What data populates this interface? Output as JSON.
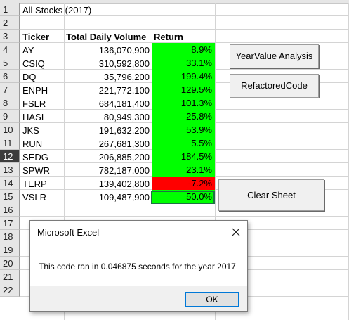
{
  "sheet": {
    "row_numbers": [
      "1",
      "2",
      "3",
      "4",
      "5",
      "6",
      "7",
      "8",
      "9",
      "10",
      "11",
      "12",
      "13",
      "14",
      "15",
      "16",
      "17",
      "18",
      "19",
      "20",
      "21",
      "22"
    ],
    "selected_row": "12",
    "title": "All Stocks (2017)",
    "headers": {
      "ticker": "Ticker",
      "volume": "Total Daily Volume",
      "return": "Return"
    },
    "rows": [
      {
        "ticker": "AY",
        "volume": "136,070,900",
        "return": "8.9%"
      },
      {
        "ticker": "CSIQ",
        "volume": "310,592,800",
        "return": "33.1%"
      },
      {
        "ticker": "DQ",
        "volume": "35,796,200",
        "return": "199.4%"
      },
      {
        "ticker": "ENPH",
        "volume": "221,772,100",
        "return": "129.5%"
      },
      {
        "ticker": "FSLR",
        "volume": "684,181,400",
        "return": "101.3%"
      },
      {
        "ticker": "HASI",
        "volume": "80,949,300",
        "return": "25.8%"
      },
      {
        "ticker": "JKS",
        "volume": "191,632,200",
        "return": "53.9%"
      },
      {
        "ticker": "RUN",
        "volume": "267,681,300",
        "return": "5.5%"
      },
      {
        "ticker": "SEDG",
        "volume": "206,885,200",
        "return": "184.5%"
      },
      {
        "ticker": "SPWR",
        "volume": "782,187,000",
        "return": "23.1%"
      },
      {
        "ticker": "TERP",
        "volume": "139,402,800",
        "return": "-7.2%"
      },
      {
        "ticker": "VSLR",
        "volume": "109,487,900",
        "return": "50.0%"
      }
    ],
    "colors": {
      "positive": "#00ff00",
      "negative": "#ff0000",
      "grid": "#d4d4d4",
      "selection": "#1e7145"
    }
  },
  "buttons": {
    "year_value": "YearValue Analysis",
    "refactored": "RefactoredCode",
    "clear_sheet": "Clear Sheet"
  },
  "dialog": {
    "title": "Microsoft Excel",
    "message": "This code ran in 0.046875 seconds for the year 2017",
    "ok_label": "OK",
    "close_icon": "close-icon"
  }
}
